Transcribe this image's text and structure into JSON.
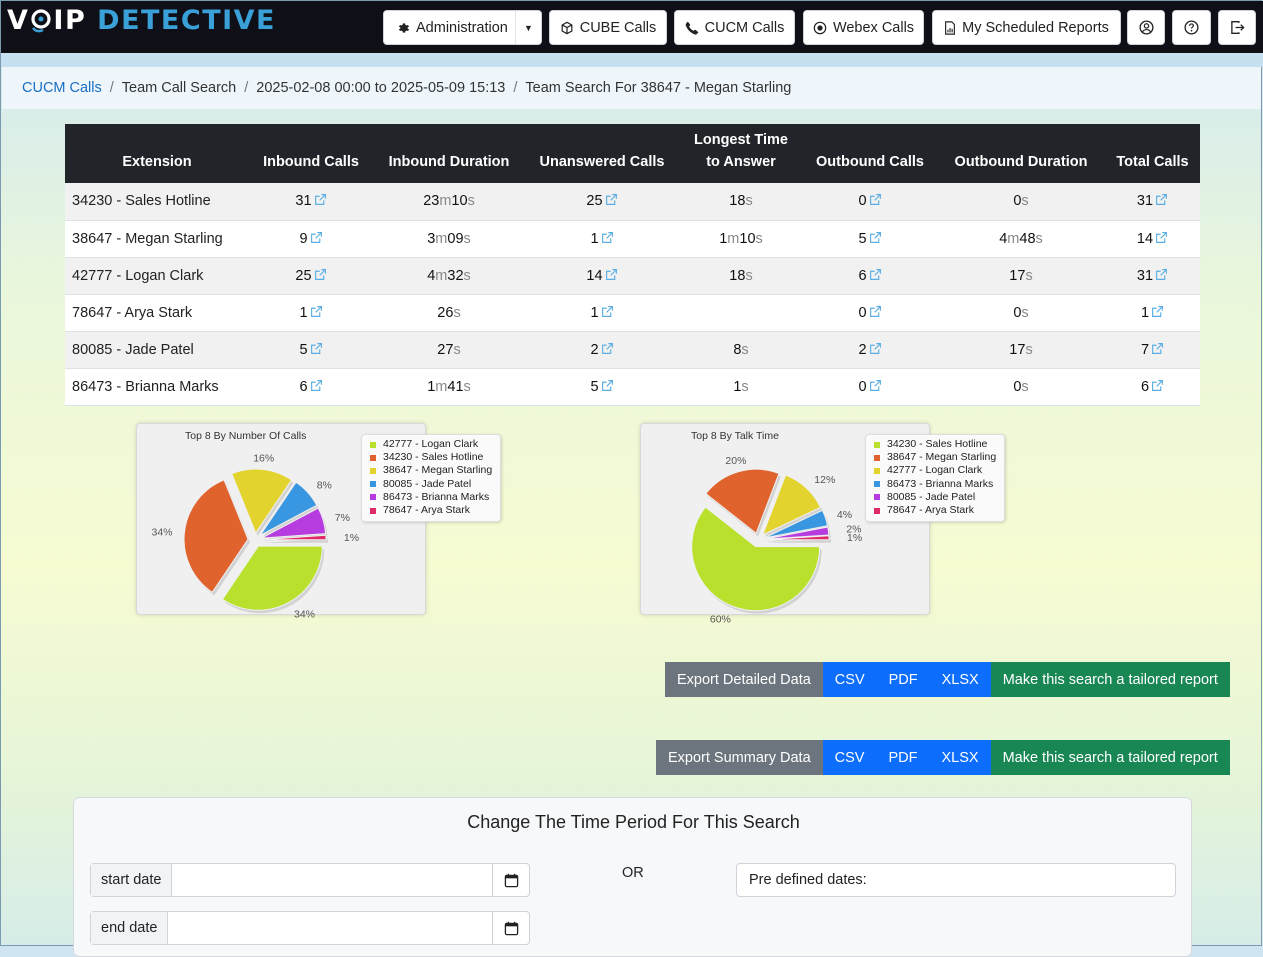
{
  "app": {
    "logo_white_1": "V",
    "logo_white_2": "IP",
    "logo_blue": "DETECTIVE"
  },
  "nav": {
    "administration": "Administration",
    "cube_calls": "CUBE Calls",
    "cucm_calls": "CUCM Calls",
    "webex_calls": "Webex Calls",
    "scheduled_reports": "My Scheduled Reports"
  },
  "breadcrumb": {
    "item1": "CUCM Calls",
    "item2": "Team Call Search",
    "item3": "2025-02-08 00:00 to 2025-05-09 15:13",
    "item4": "Team Search For 38647 - Megan Starling"
  },
  "table": {
    "headers": {
      "extension": "Extension",
      "inbound_calls": "Inbound Calls",
      "inbound_duration": "Inbound Duration",
      "unanswered_calls": "Unanswered Calls",
      "longest_line1": "Longest Time",
      "longest_line2": "to Answer",
      "outbound_calls": "Outbound Calls",
      "outbound_duration": "Outbound Duration",
      "total_calls": "Total Calls"
    },
    "rows": [
      {
        "ext": "34230 - Sales Hotline",
        "inb": "31",
        "indur": [
          [
            "23",
            "m"
          ],
          [
            "10",
            "s"
          ]
        ],
        "unans": "25",
        "longest": [
          [
            "18",
            "s"
          ]
        ],
        "outb": "0",
        "outdur": [
          [
            "0",
            "s"
          ]
        ],
        "total": "31"
      },
      {
        "ext": "38647 - Megan Starling",
        "inb": "9",
        "indur": [
          [
            "3",
            "m"
          ],
          [
            "09",
            "s"
          ]
        ],
        "unans": "1",
        "longest": [
          [
            "1",
            "m"
          ],
          [
            "10",
            "s"
          ]
        ],
        "outb": "5",
        "outdur": [
          [
            "4",
            "m"
          ],
          [
            "48",
            "s"
          ]
        ],
        "total": "14"
      },
      {
        "ext": "42777 - Logan Clark",
        "inb": "25",
        "indur": [
          [
            "4",
            "m"
          ],
          [
            "32",
            "s"
          ]
        ],
        "unans": "14",
        "longest": [
          [
            "18",
            "s"
          ]
        ],
        "outb": "6",
        "outdur": [
          [
            "17",
            "s"
          ]
        ],
        "total": "31"
      },
      {
        "ext": "78647 - Arya Stark",
        "inb": "1",
        "indur": [
          [
            "26",
            "s"
          ]
        ],
        "unans": "1",
        "longest": [],
        "outb": "0",
        "outdur": [
          [
            "0",
            "s"
          ]
        ],
        "total": "1"
      },
      {
        "ext": "80085 - Jade Patel",
        "inb": "5",
        "indur": [
          [
            "27",
            "s"
          ]
        ],
        "unans": "2",
        "longest": [
          [
            "8",
            "s"
          ]
        ],
        "outb": "2",
        "outdur": [
          [
            "17",
            "s"
          ]
        ],
        "total": "7"
      },
      {
        "ext": "86473 - Brianna Marks",
        "inb": "6",
        "indur": [
          [
            "1",
            "m"
          ],
          [
            "41",
            "s"
          ]
        ],
        "unans": "5",
        "longest": [
          [
            "1",
            "s"
          ]
        ],
        "outb": "0",
        "outdur": [
          [
            "0",
            "s"
          ]
        ],
        "total": "6"
      }
    ]
  },
  "chart_data": [
    {
      "type": "pie",
      "title": "Top 8 By Number Of Calls",
      "legend_placement": "top-right",
      "categories": [
        "42777 - Logan Clark",
        "34230 - Sales Hotline",
        "38647 - Megan Starling",
        "80085 - Jade Patel",
        "86473 - Brianna Marks",
        "78647 - Arya Stark"
      ],
      "values": [
        31,
        31,
        14,
        7,
        6,
        1
      ],
      "labels": [
        "34%",
        "34%",
        "16%",
        "8%",
        "7%",
        "1%"
      ],
      "colors": [
        "#b9e02c",
        "#e0632e",
        "#e3d32f",
        "#3897e0",
        "#b73ce0",
        "#e02a68"
      ]
    },
    {
      "type": "pie",
      "title": "Top 8 By Talk Time",
      "legend_placement": "top-right",
      "categories": [
        "34230 - Sales Hotline",
        "38647 - Megan Starling",
        "42777 - Logan Clark",
        "86473 - Brianna Marks",
        "80085 - Jade Patel",
        "78647 - Arya Stark"
      ],
      "values": [
        60,
        20,
        12,
        4,
        2,
        1
      ],
      "labels": [
        "60%",
        "20%",
        "12%",
        "4%",
        "2%",
        "1%"
      ],
      "colors": [
        "#b9e02c",
        "#e0632e",
        "#e3d32f",
        "#3897e0",
        "#b73ce0",
        "#e02a68"
      ]
    }
  ],
  "export_detailed": {
    "label": "Export Detailed Data",
    "csv": "CSV",
    "pdf": "PDF",
    "xlsx": "XLSX",
    "tailored": "Make this search a tailored report"
  },
  "export_summary": {
    "label": "Export Summary Data",
    "csv": "CSV",
    "pdf": "PDF",
    "xlsx": "XLSX",
    "tailored": "Make this search a tailored report"
  },
  "time_period": {
    "title": "Change The Time Period For This Search",
    "start_label": "start date",
    "start_value": "",
    "end_label": "end date",
    "end_value": "",
    "or": "OR",
    "predefined": "Pre defined dates:"
  }
}
